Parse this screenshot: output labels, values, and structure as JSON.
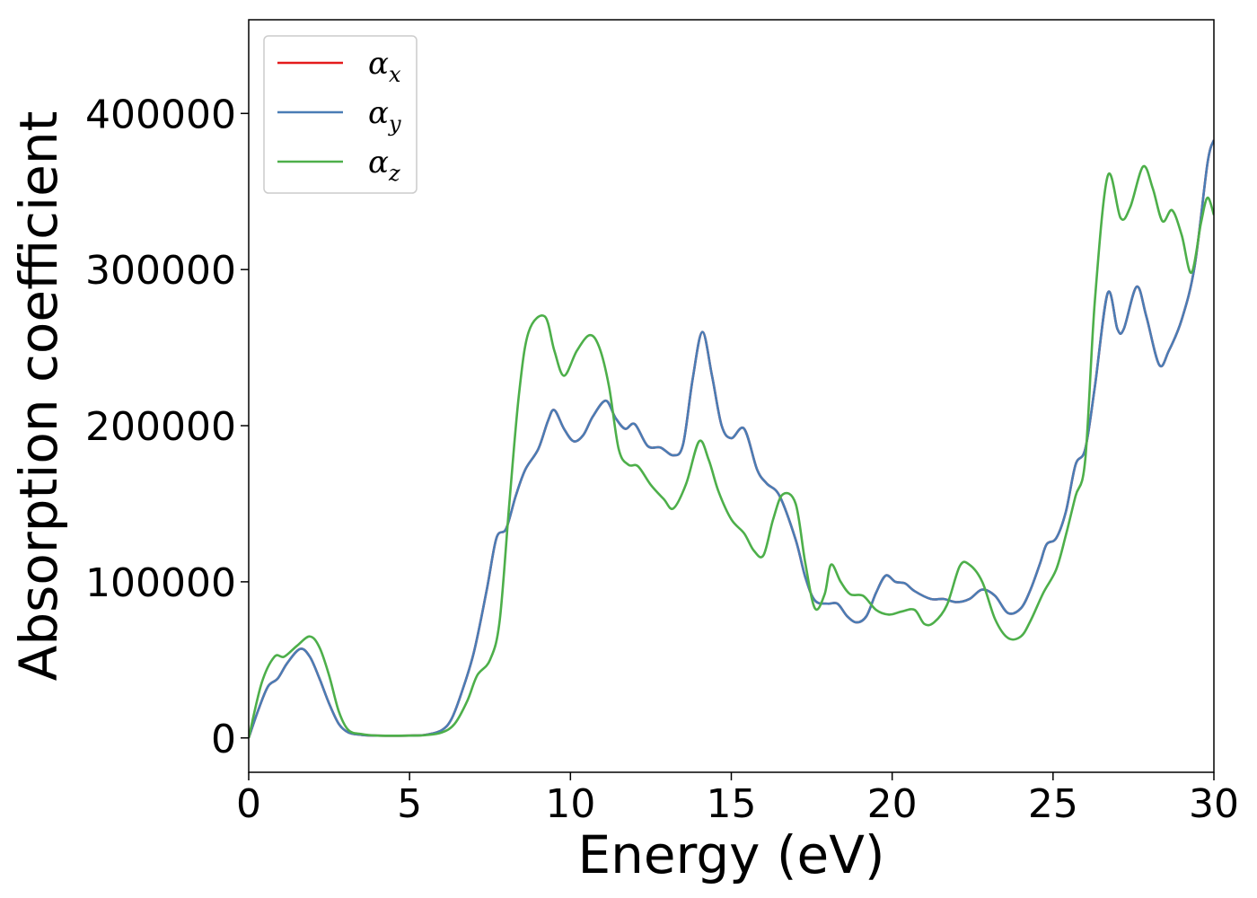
{
  "chart_data": {
    "type": "line",
    "xlabel": "Energy (eV)",
    "ylabel": "Absorption coefficient",
    "xlim": [
      0,
      30
    ],
    "ylim": [
      -22000,
      460000
    ],
    "xticks": [
      0,
      5,
      10,
      15,
      20,
      25,
      30
    ],
    "yticks": [
      0,
      100000,
      200000,
      300000,
      400000
    ],
    "grid": false,
    "legend_position": "top-left",
    "series": [
      {
        "name": "α_x",
        "legend_symbol": "α",
        "legend_sub": "x",
        "color": "#e41a1c",
        "shares_values_with": "α_y"
      },
      {
        "name": "α_y",
        "legend_symbol": "α",
        "legend_sub": "y",
        "color": "#4a7db5",
        "points": [
          [
            0,
            0
          ],
          [
            0.3,
            18000
          ],
          [
            0.6,
            33000
          ],
          [
            0.9,
            38000
          ],
          [
            1.2,
            48000
          ],
          [
            1.6,
            57000
          ],
          [
            1.9,
            52000
          ],
          [
            2.2,
            38000
          ],
          [
            2.5,
            22000
          ],
          [
            2.8,
            9000
          ],
          [
            3.1,
            3500
          ],
          [
            3.5,
            2000
          ],
          [
            4,
            1500
          ],
          [
            5,
            1500
          ],
          [
            5.5,
            2000
          ],
          [
            6,
            5000
          ],
          [
            6.3,
            12000
          ],
          [
            6.6,
            28000
          ],
          [
            7,
            55000
          ],
          [
            7.4,
            95000
          ],
          [
            7.7,
            128000
          ],
          [
            8,
            134000
          ],
          [
            8.3,
            155000
          ],
          [
            8.6,
            172000
          ],
          [
            9,
            185000
          ],
          [
            9.3,
            203000
          ],
          [
            9.5,
            210000
          ],
          [
            9.8,
            198000
          ],
          [
            10.1,
            190000
          ],
          [
            10.4,
            194000
          ],
          [
            10.7,
            206000
          ],
          [
            11.1,
            216000
          ],
          [
            11.4,
            205000
          ],
          [
            11.7,
            198000
          ],
          [
            12,
            201000
          ],
          [
            12.4,
            187000
          ],
          [
            12.8,
            186000
          ],
          [
            13.2,
            181000
          ],
          [
            13.5,
            188000
          ],
          [
            13.8,
            230000
          ],
          [
            14.1,
            260000
          ],
          [
            14.4,
            232000
          ],
          [
            14.7,
            200000
          ],
          [
            15,
            192000
          ],
          [
            15.4,
            198000
          ],
          [
            15.8,
            172000
          ],
          [
            16.1,
            163000
          ],
          [
            16.5,
            155000
          ],
          [
            17,
            127000
          ],
          [
            17.3,
            103000
          ],
          [
            17.6,
            88000
          ],
          [
            18,
            86000
          ],
          [
            18.3,
            86000
          ],
          [
            18.6,
            78000
          ],
          [
            18.9,
            74000
          ],
          [
            19.2,
            78000
          ],
          [
            19.5,
            93000
          ],
          [
            19.8,
            104000
          ],
          [
            20.1,
            100000
          ],
          [
            20.4,
            99000
          ],
          [
            20.7,
            94000
          ],
          [
            21.2,
            89000
          ],
          [
            21.6,
            89000
          ],
          [
            22,
            87000
          ],
          [
            22.4,
            89000
          ],
          [
            22.8,
            95000
          ],
          [
            23.2,
            91000
          ],
          [
            23.6,
            80000
          ],
          [
            24,
            83000
          ],
          [
            24.3,
            95000
          ],
          [
            24.6,
            112000
          ],
          [
            24.8,
            124000
          ],
          [
            25.1,
            128000
          ],
          [
            25.4,
            145000
          ],
          [
            25.7,
            175000
          ],
          [
            26,
            185000
          ],
          [
            26.3,
            225000
          ],
          [
            26.7,
            285000
          ],
          [
            27,
            262000
          ],
          [
            27.2,
            262000
          ],
          [
            27.6,
            289000
          ],
          [
            27.9,
            270000
          ],
          [
            28.3,
            239000
          ],
          [
            28.6,
            248000
          ],
          [
            29,
            268000
          ],
          [
            29.4,
            302000
          ],
          [
            29.8,
            368000
          ],
          [
            30,
            383000
          ]
        ]
      },
      {
        "name": "α_z",
        "legend_symbol": "α",
        "legend_sub": "z",
        "color": "#4daf4a",
        "points": [
          [
            0,
            0
          ],
          [
            0.4,
            35000
          ],
          [
            0.8,
            52000
          ],
          [
            1.1,
            52000
          ],
          [
            1.5,
            59000
          ],
          [
            1.9,
            65000
          ],
          [
            2.2,
            58000
          ],
          [
            2.5,
            40000
          ],
          [
            2.8,
            17000
          ],
          [
            3.1,
            5000
          ],
          [
            3.5,
            2500
          ],
          [
            4,
            1500
          ],
          [
            5,
            1500
          ],
          [
            5.5,
            1800
          ],
          [
            6,
            3500
          ],
          [
            6.4,
            9000
          ],
          [
            6.8,
            24000
          ],
          [
            7.1,
            40000
          ],
          [
            7.5,
            50000
          ],
          [
            7.8,
            75000
          ],
          [
            8.1,
            150000
          ],
          [
            8.4,
            220000
          ],
          [
            8.7,
            260000
          ],
          [
            9.2,
            270000
          ],
          [
            9.5,
            248000
          ],
          [
            9.8,
            232000
          ],
          [
            10.2,
            248000
          ],
          [
            10.6,
            258000
          ],
          [
            10.9,
            250000
          ],
          [
            11.2,
            225000
          ],
          [
            11.5,
            185000
          ],
          [
            11.8,
            175000
          ],
          [
            12.1,
            174000
          ],
          [
            12.5,
            162000
          ],
          [
            12.9,
            153000
          ],
          [
            13.2,
            147000
          ],
          [
            13.6,
            163000
          ],
          [
            14,
            190000
          ],
          [
            14.3,
            178000
          ],
          [
            14.6,
            158000
          ],
          [
            15,
            140000
          ],
          [
            15.4,
            131000
          ],
          [
            15.7,
            120000
          ],
          [
            16,
            117000
          ],
          [
            16.3,
            140000
          ],
          [
            16.6,
            156000
          ],
          [
            17,
            150000
          ],
          [
            17.3,
            112000
          ],
          [
            17.6,
            83000
          ],
          [
            17.9,
            92000
          ],
          [
            18.1,
            111000
          ],
          [
            18.4,
            100000
          ],
          [
            18.7,
            92000
          ],
          [
            19.1,
            91000
          ],
          [
            19.5,
            82000
          ],
          [
            19.9,
            79000
          ],
          [
            20.3,
            81000
          ],
          [
            20.7,
            82000
          ],
          [
            21,
            73000
          ],
          [
            21.3,
            74000
          ],
          [
            21.7,
            85000
          ],
          [
            22.1,
            110000
          ],
          [
            22.4,
            111000
          ],
          [
            22.8,
            100000
          ],
          [
            23.2,
            76000
          ],
          [
            23.6,
            64000
          ],
          [
            24,
            65000
          ],
          [
            24.3,
            75000
          ],
          [
            24.7,
            93000
          ],
          [
            25.1,
            108000
          ],
          [
            25.4,
            130000
          ],
          [
            25.7,
            155000
          ],
          [
            26,
            178000
          ],
          [
            26.3,
            280000
          ],
          [
            26.7,
            360000
          ],
          [
            27.1,
            333000
          ],
          [
            27.4,
            340000
          ],
          [
            27.8,
            366000
          ],
          [
            28.1,
            352000
          ],
          [
            28.4,
            331000
          ],
          [
            28.7,
            338000
          ],
          [
            29,
            322000
          ],
          [
            29.3,
            298000
          ],
          [
            29.6,
            330000
          ],
          [
            29.8,
            346000
          ],
          [
            30,
            335000
          ]
        ]
      }
    ]
  }
}
